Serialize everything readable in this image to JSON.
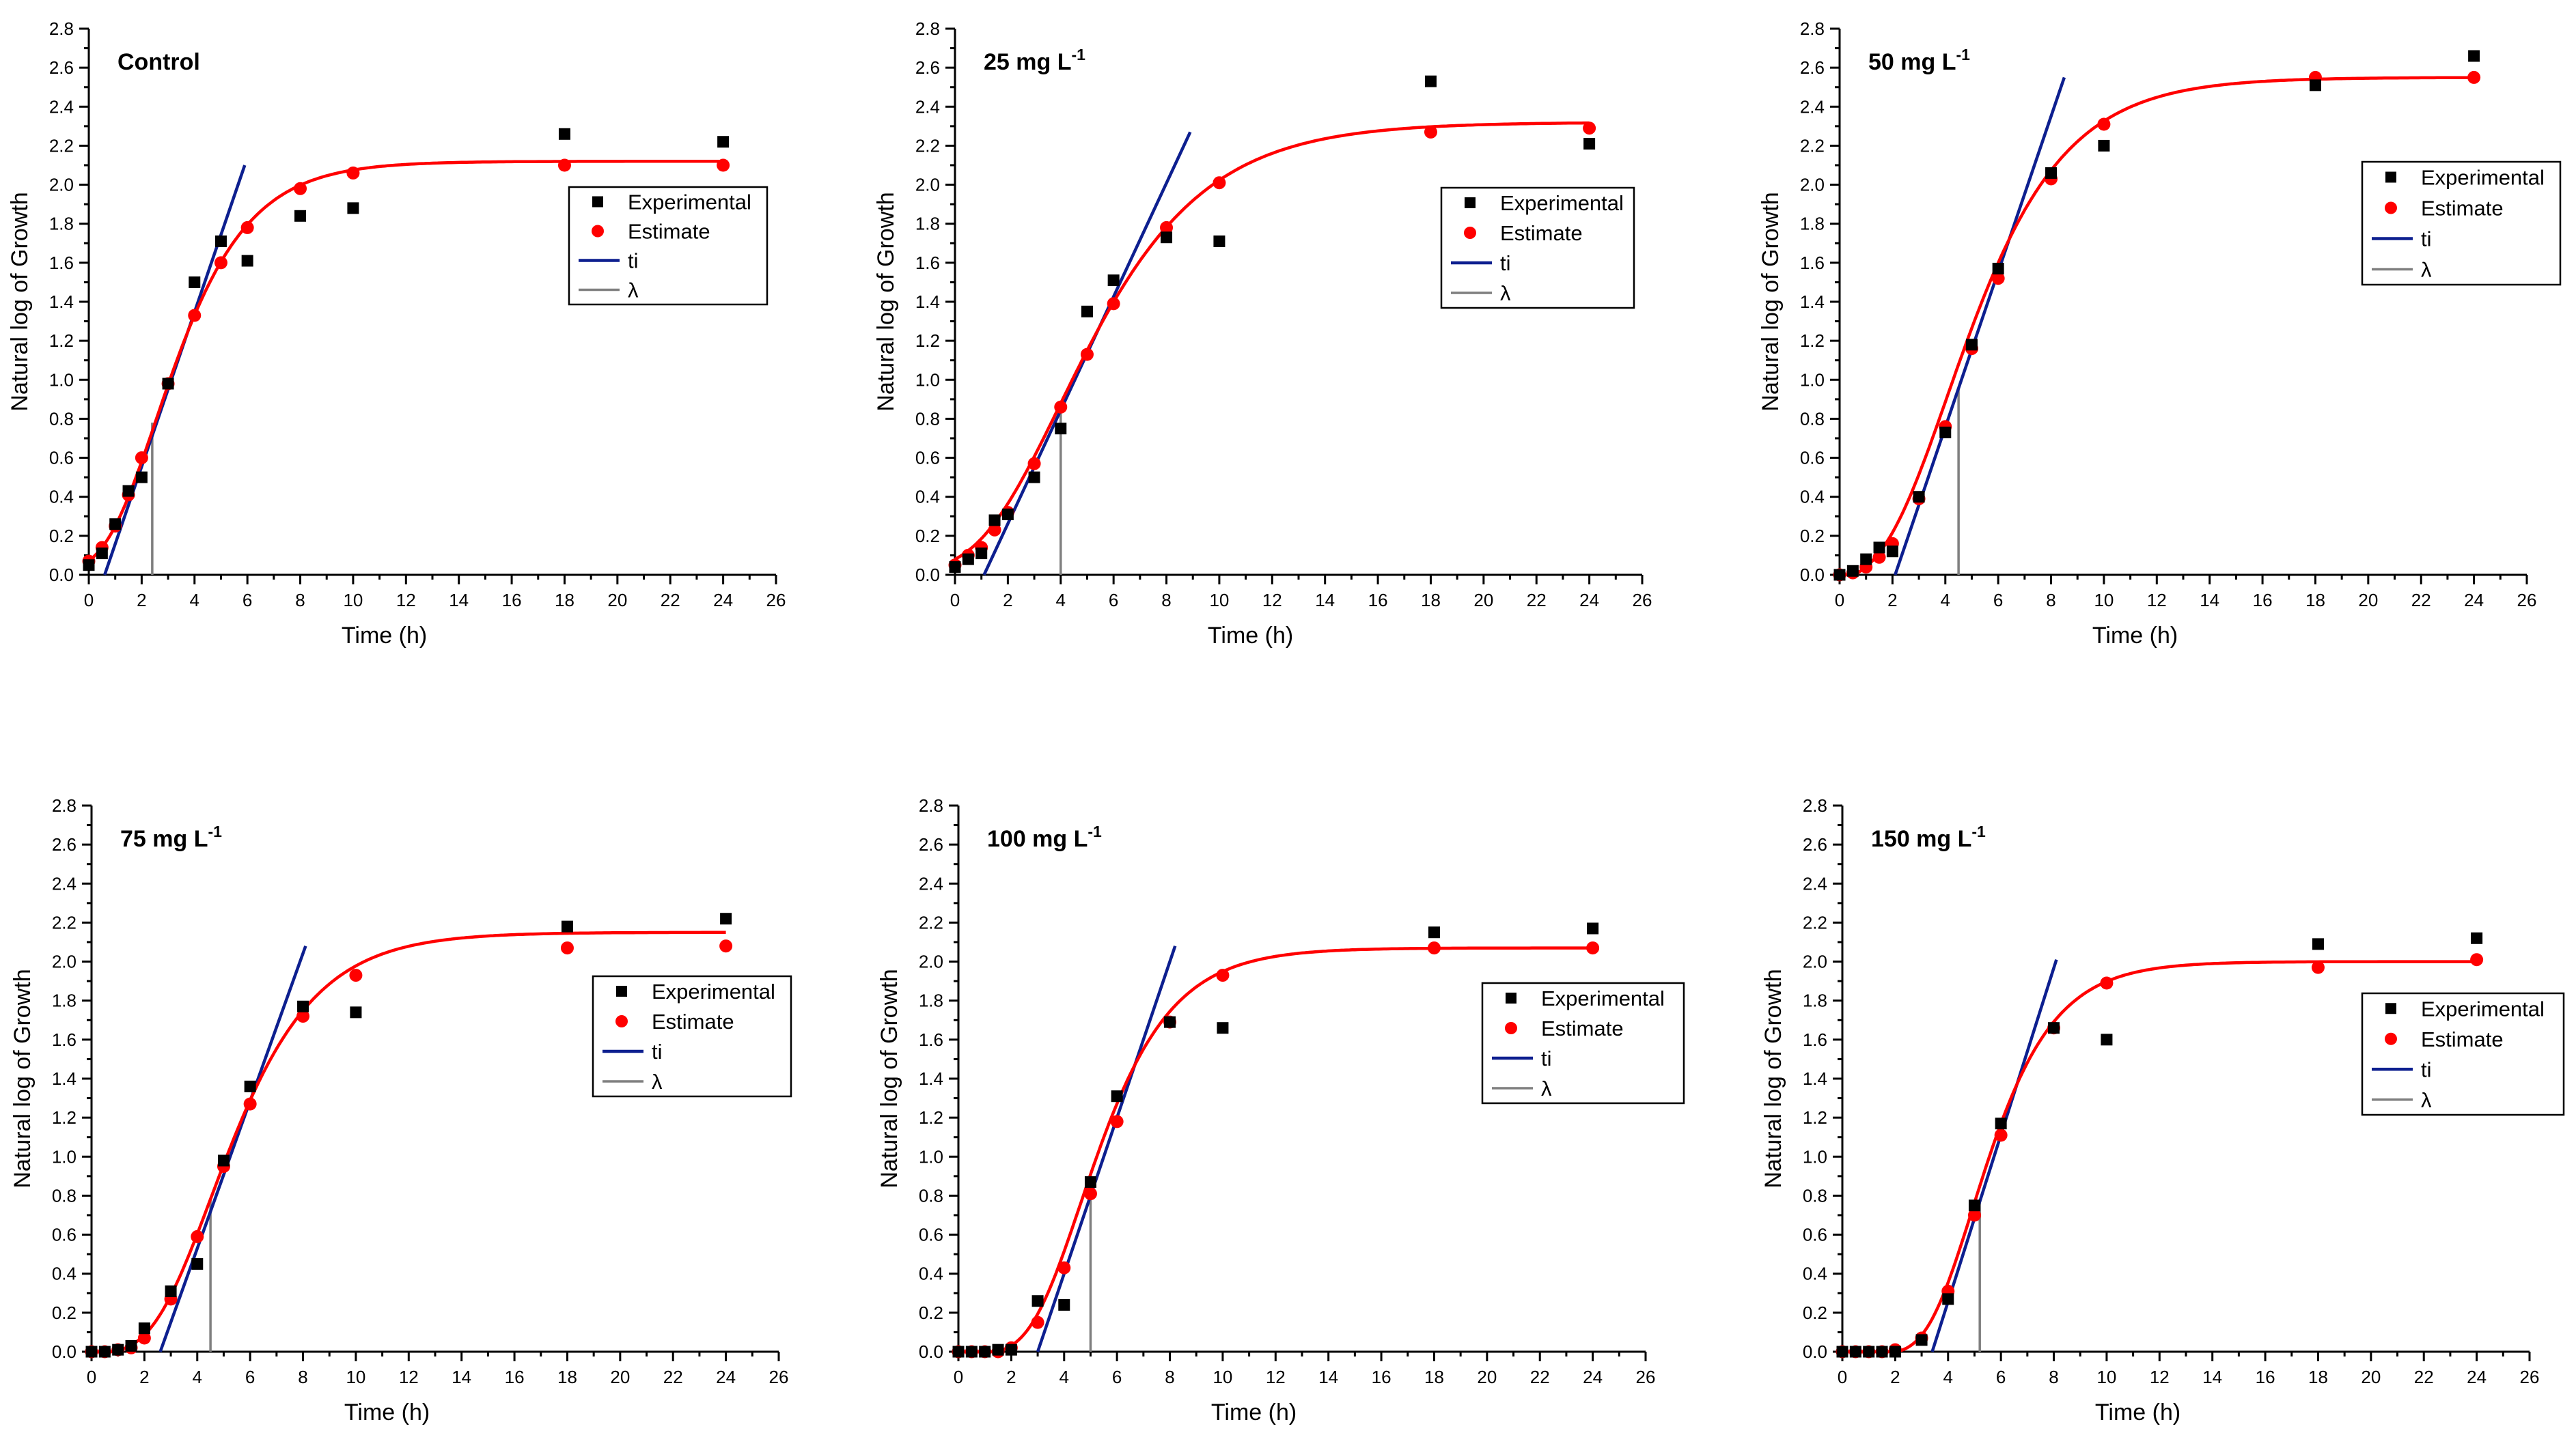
{
  "figure": {
    "rows": 2,
    "cols": 3
  },
  "legend": {
    "experimental": "Experimental",
    "estimate": "Estimate",
    "ti": "ti",
    "lambda": "λ"
  },
  "colors": {
    "experimental": "#000000",
    "estimate": "#ff0000",
    "ti": "#0d1f8f",
    "lambda": "#7f7f7f"
  },
  "chart_data": [
    {
      "type": "scatter",
      "title": "Control",
      "title_superscript": "",
      "xlabel": "Time (h)",
      "ylabel": "Natural log of Growth",
      "xlim": [
        0,
        26
      ],
      "ylim": [
        0,
        2.8
      ],
      "xticks": [
        "0",
        "2",
        "4",
        "6",
        "8",
        "10",
        "12",
        "14",
        "16",
        "18",
        "20",
        "22",
        "24",
        "26"
      ],
      "yticks": [
        "0.0",
        "0.2",
        "0.4",
        "0.6",
        "0.8",
        "1.0",
        "1.2",
        "1.4",
        "1.6",
        "1.8",
        "2.0",
        "2.2",
        "2.4",
        "2.6",
        "2.8"
      ],
      "legend_position": "right-middle",
      "experimental": {
        "x": [
          0,
          0.5,
          1,
          1.5,
          2,
          3,
          4,
          5,
          6,
          8,
          10,
          18,
          24
        ],
        "y": [
          0.05,
          0.11,
          0.26,
          0.43,
          0.5,
          0.98,
          1.5,
          1.71,
          1.61,
          1.84,
          1.88,
          2.26,
          2.22
        ]
      },
      "estimate": {
        "x": [
          0,
          0.5,
          1,
          1.5,
          2,
          3,
          4,
          5,
          6,
          8,
          10,
          18,
          24
        ],
        "y": [
          0.07,
          0.14,
          0.25,
          0.41,
          0.6,
          0.98,
          1.33,
          1.6,
          1.78,
          1.98,
          2.06,
          2.1,
          2.1
        ]
      },
      "fit_curve": {
        "y0": 0.02,
        "A": 2.1,
        "mu": 0.398,
        "lambda": 0.6
      },
      "ti_line": {
        "x": [
          0.6,
          5.9
        ],
        "y": [
          0.0,
          2.1
        ]
      },
      "lambda_line": {
        "x": 2.4,
        "y_top": 0.78
      }
    },
    {
      "type": "scatter",
      "title": "25 mg L",
      "title_superscript": "-1",
      "xlabel": "Time (h)",
      "ylabel": "Natural log of Growth",
      "xlim": [
        0,
        26
      ],
      "ylim": [
        0,
        2.8
      ],
      "xticks": [
        "0",
        "2",
        "4",
        "6",
        "8",
        "10",
        "12",
        "14",
        "16",
        "18",
        "20",
        "22",
        "24",
        "26"
      ],
      "yticks": [
        "0.0",
        "0.2",
        "0.4",
        "0.6",
        "0.8",
        "1.0",
        "1.2",
        "1.4",
        "1.6",
        "1.8",
        "2.0",
        "2.2",
        "2.4",
        "2.6",
        "2.8"
      ],
      "legend_position": "right-middle",
      "experimental": {
        "x": [
          0,
          0.5,
          1,
          1.5,
          2,
          3,
          4,
          5,
          6,
          8,
          10,
          18,
          24
        ],
        "y": [
          0.04,
          0.08,
          0.11,
          0.28,
          0.31,
          0.5,
          0.75,
          1.35,
          1.51,
          1.73,
          1.71,
          2.53,
          2.21
        ]
      },
      "estimate": {
        "x": [
          0,
          0.5,
          1,
          1.5,
          2,
          3,
          4,
          5,
          6,
          8,
          10,
          18,
          24
        ],
        "y": [
          0.05,
          0.1,
          0.14,
          0.23,
          0.32,
          0.57,
          0.86,
          1.13,
          1.39,
          1.78,
          2.01,
          2.27,
          2.29
        ]
      },
      "fit_curve": {
        "y0": 0.02,
        "A": 2.3,
        "mu": 0.277,
        "lambda": 0.9
      },
      "ti_line": {
        "x": [
          1.1,
          8.9
        ],
        "y": [
          0.0,
          2.27
        ]
      },
      "lambda_line": {
        "x": 4.0,
        "y_top": 0.85
      }
    },
    {
      "type": "scatter",
      "title": "50 mg L",
      "title_superscript": "-1",
      "xlabel": "Time (h)",
      "ylabel": "Natural log of Growth",
      "xlim": [
        0,
        26
      ],
      "ylim": [
        0,
        2.8
      ],
      "xticks": [
        "0",
        "2",
        "4",
        "6",
        "8",
        "10",
        "12",
        "14",
        "16",
        "18",
        "20",
        "22",
        "24",
        "26"
      ],
      "yticks": [
        "0.0",
        "0.2",
        "0.4",
        "0.6",
        "0.8",
        "1.0",
        "1.2",
        "1.4",
        "1.6",
        "1.8",
        "2.0",
        "2.2",
        "2.4",
        "2.6",
        "2.8"
      ],
      "legend_position": "right-middle",
      "experimental": {
        "x": [
          0,
          0.5,
          1,
          1.5,
          2,
          3,
          4,
          5,
          6,
          8,
          10,
          18,
          24
        ],
        "y": [
          0.0,
          0.02,
          0.08,
          0.14,
          0.12,
          0.4,
          0.73,
          1.18,
          1.57,
          2.06,
          2.2,
          2.51,
          2.66
        ]
      },
      "estimate": {
        "x": [
          0,
          0.5,
          1,
          1.5,
          2,
          3,
          4,
          5,
          6,
          8,
          10,
          18,
          24
        ],
        "y": [
          0.0,
          0.01,
          0.04,
          0.09,
          0.16,
          0.39,
          0.76,
          1.16,
          1.52,
          2.03,
          2.31,
          2.55,
          2.55
        ]
      },
      "fit_curve": {
        "y0": -0.04,
        "A": 2.59,
        "mu": 0.386,
        "lambda": 1.6
      },
      "ti_line": {
        "x": [
          2.1,
          8.5
        ],
        "y": [
          0.0,
          2.55
        ]
      },
      "lambda_line": {
        "x": 4.5,
        "y_top": 0.95
      }
    },
    {
      "type": "scatter",
      "title": "75 mg L",
      "title_superscript": "-1",
      "xlabel": "Time (h)",
      "ylabel": "Natural log of Growth",
      "xlim": [
        0,
        26
      ],
      "ylim": [
        0,
        2.8
      ],
      "xticks": [
        "0",
        "2",
        "4",
        "6",
        "8",
        "10",
        "12",
        "14",
        "16",
        "18",
        "20",
        "22",
        "24",
        "26"
      ],
      "yticks": [
        "0.0",
        "0.2",
        "0.4",
        "0.6",
        "0.8",
        "1.0",
        "1.2",
        "1.4",
        "1.6",
        "1.8",
        "2.0",
        "2.2",
        "2.4",
        "2.6",
        "2.8"
      ],
      "legend_position": "right-middle",
      "experimental": {
        "x": [
          0,
          0.5,
          1,
          1.5,
          2,
          3,
          4,
          5,
          6,
          8,
          10,
          18,
          24
        ],
        "y": [
          0.0,
          0.0,
          0.01,
          0.03,
          0.12,
          0.31,
          0.45,
          0.98,
          1.36,
          1.77,
          1.74,
          2.18,
          2.22
        ]
      },
      "estimate": {
        "x": [
          0,
          0.5,
          1,
          1.5,
          2,
          3,
          4,
          5,
          6,
          8,
          10,
          18,
          24
        ],
        "y": [
          0.0,
          0.0,
          0.01,
          0.02,
          0.07,
          0.27,
          0.59,
          0.95,
          1.27,
          1.72,
          1.93,
          2.07,
          2.08
        ]
      },
      "fit_curve": {
        "y0": -0.01,
        "A": 2.16,
        "mu": 0.36,
        "lambda": 2.3
      },
      "ti_line": {
        "x": [
          2.6,
          8.1
        ],
        "y": [
          0.0,
          2.08
        ]
      },
      "lambda_line": {
        "x": 4.5,
        "y_top": 0.78
      }
    },
    {
      "type": "scatter",
      "title": "100 mg L",
      "title_superscript": "-1",
      "xlabel": "Time (h)",
      "ylabel": "Natural log of Growth",
      "xlim": [
        0,
        26
      ],
      "ylim": [
        0,
        2.8
      ],
      "xticks": [
        "0",
        "2",
        "4",
        "6",
        "8",
        "10",
        "12",
        "14",
        "16",
        "18",
        "20",
        "22",
        "24",
        "26"
      ],
      "yticks": [
        "0.0",
        "0.2",
        "0.4",
        "0.6",
        "0.8",
        "1.0",
        "1.2",
        "1.4",
        "1.6",
        "1.8",
        "2.0",
        "2.2",
        "2.4",
        "2.6",
        "2.8"
      ],
      "legend_position": "right-middle",
      "experimental": {
        "x": [
          0,
          0.5,
          1,
          1.5,
          2,
          3,
          4,
          5,
          6,
          8,
          10,
          18,
          24
        ],
        "y": [
          0.0,
          0.0,
          0.0,
          0.01,
          0.01,
          0.26,
          0.24,
          0.87,
          1.31,
          1.69,
          1.66,
          2.15,
          2.17
        ]
      },
      "estimate": {
        "x": [
          0,
          0.5,
          1,
          1.5,
          2,
          3,
          4,
          5,
          6,
          8,
          10,
          18,
          24
        ],
        "y": [
          0.0,
          0.0,
          0.0,
          0.0,
          0.02,
          0.15,
          0.43,
          0.81,
          1.18,
          1.69,
          1.93,
          2.07,
          2.07
        ]
      },
      "fit_curve": {
        "y0": -0.01,
        "A": 2.08,
        "mu": 0.4,
        "lambda": 2.7
      },
      "ti_line": {
        "x": [
          3.0,
          8.2
        ],
        "y": [
          0.0,
          2.08
        ]
      },
      "lambda_line": {
        "x": 5.0,
        "y_top": 0.82
      }
    },
    {
      "type": "scatter",
      "title": "150 mg L",
      "title_superscript": "-1",
      "xlabel": "Time (h)",
      "ylabel": "Natural log of Growth",
      "xlim": [
        0,
        26
      ],
      "ylim": [
        0,
        2.8
      ],
      "xticks": [
        "0",
        "2",
        "4",
        "6",
        "8",
        "10",
        "12",
        "14",
        "16",
        "18",
        "20",
        "22",
        "24",
        "26"
      ],
      "yticks": [
        "0.0",
        "0.2",
        "0.4",
        "0.6",
        "0.8",
        "1.0",
        "1.2",
        "1.4",
        "1.6",
        "1.8",
        "2.0",
        "2.2",
        "2.4",
        "2.6",
        "2.8"
      ],
      "legend_position": "right-middle",
      "experimental": {
        "x": [
          0,
          0.5,
          1,
          1.5,
          2,
          3,
          4,
          5,
          6,
          8,
          10,
          18,
          24
        ],
        "y": [
          0.0,
          0.0,
          0.0,
          0.0,
          0.0,
          0.06,
          0.27,
          0.75,
          1.17,
          1.66,
          1.6,
          2.09,
          2.12
        ]
      },
      "estimate": {
        "x": [
          0,
          0.5,
          1,
          1.5,
          2,
          3,
          4,
          5,
          6,
          8,
          10,
          18,
          24
        ],
        "y": [
          0.0,
          0.0,
          0.0,
          0.0,
          0.01,
          0.07,
          0.31,
          0.7,
          1.11,
          1.66,
          1.89,
          1.97,
          2.01
        ]
      },
      "fit_curve": {
        "y0": -0.01,
        "A": 2.01,
        "mu": 0.43,
        "lambda": 3.2
      },
      "ti_line": {
        "x": [
          3.4,
          8.1
        ],
        "y": [
          0.0,
          2.01
        ]
      },
      "lambda_line": {
        "x": 5.2,
        "y_top": 0.78
      }
    }
  ]
}
